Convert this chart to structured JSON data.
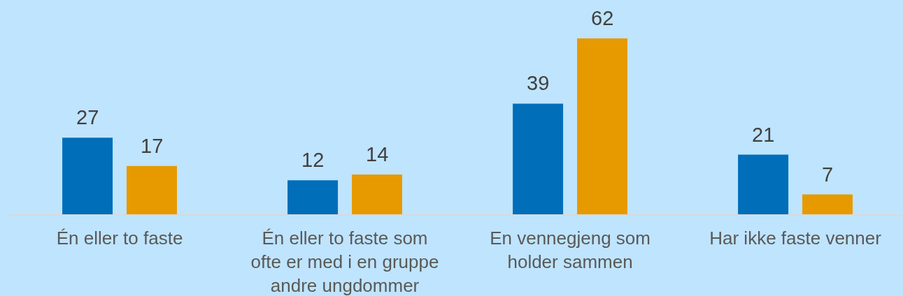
{
  "chart_data": {
    "type": "bar",
    "categories": [
      "Én eller to faste",
      "Én eller to faste som ofte er med i en gruppe andre ungdommer",
      "En vennegjeng som holder sammen",
      "Har ikke faste venner"
    ],
    "series": [
      {
        "color": "#006eb9",
        "values": [
          27,
          12,
          39,
          21
        ]
      },
      {
        "color": "#e69a00",
        "values": [
          17,
          14,
          62,
          7
        ]
      }
    ],
    "data_labels": true
  }
}
